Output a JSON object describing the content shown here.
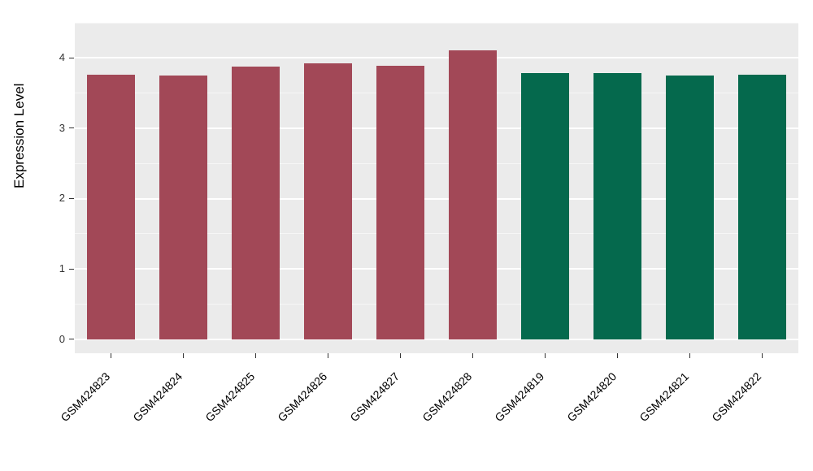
{
  "page": {
    "background": "#FFFFFF"
  },
  "chart_data": {
    "type": "bar",
    "title": "",
    "xlabel": "",
    "ylabel": "Expression Level",
    "categories": [
      "GSM424823",
      "GSM424824",
      "GSM424825",
      "GSM424826",
      "GSM424827",
      "GSM424828",
      "GSM424819",
      "GSM424820",
      "GSM424821",
      "GSM424822"
    ],
    "values": [
      3.76,
      3.75,
      3.88,
      3.92,
      3.89,
      4.11,
      3.78,
      3.78,
      3.75,
      3.76
    ],
    "bar_colors": [
      "#A24857",
      "#A24857",
      "#A24857",
      "#A24857",
      "#A24857",
      "#A24857",
      "#05694D",
      "#05694D",
      "#05694D",
      "#05694D"
    ],
    "group_colors": {
      "group1": "#A24857",
      "group2": "#05694D"
    },
    "yticks": [
      0,
      1,
      2,
      3,
      4
    ],
    "minor_yticks": [
      0.5,
      1.5,
      2.5,
      3.5,
      4.5
    ],
    "ylim": [
      -0.2,
      4.5
    ],
    "bar_width_fraction": 0.67,
    "panel_bg": "#EBEBEB",
    "grid_color": "#FFFFFF",
    "legend": "none",
    "grid": "on"
  }
}
